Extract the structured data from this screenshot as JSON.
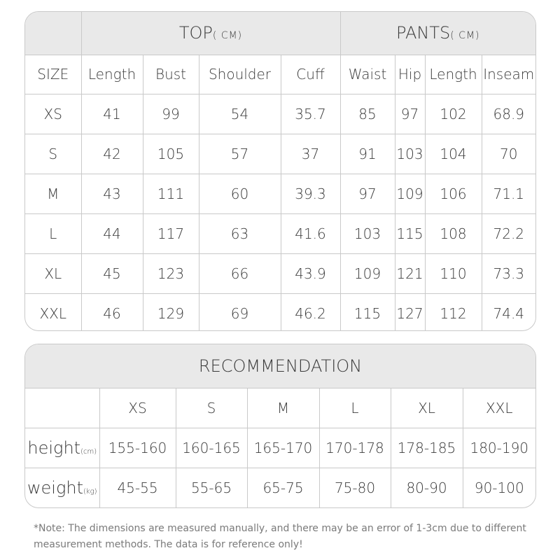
{
  "size_table": {
    "top_label": "TOP",
    "top_unit": "( CM)",
    "pants_label": "PANTS",
    "pants_unit": "( CM)",
    "columns": [
      "SIZE",
      "Length",
      "Bust",
      "Shoulder",
      "Cuff",
      "Waist",
      "Hip",
      "Length",
      "Inseam"
    ],
    "rows": [
      [
        "XS",
        "41",
        "99",
        "54",
        "35.7",
        "85",
        "97",
        "102",
        "68.9"
      ],
      [
        "S",
        "42",
        "105",
        "57",
        "37",
        "91",
        "103",
        "104",
        "70"
      ],
      [
        "M",
        "43",
        "111",
        "60",
        "39.3",
        "97",
        "109",
        "106",
        "71.1"
      ],
      [
        "L",
        "44",
        "117",
        "63",
        "41.6",
        "103",
        "115",
        "108",
        "72.2"
      ],
      [
        "XL",
        "45",
        "123",
        "66",
        "43.9",
        "109",
        "121",
        "110",
        "73.3"
      ],
      [
        "XXL",
        "46",
        "129",
        "69",
        "46.2",
        "115",
        "127",
        "112",
        "74.4"
      ]
    ]
  },
  "recommendation": {
    "title": "RECOMMENDATION",
    "sizes": [
      "XS",
      "S",
      "M",
      "L",
      "XL",
      "XXL"
    ],
    "rows": [
      {
        "label": "height",
        "unit": "(cm)",
        "values": [
          "155-160",
          "160-165",
          "165-170",
          "170-178",
          "178-185",
          "180-190"
        ]
      },
      {
        "label": "weight",
        "unit": "(kg)",
        "values": [
          "45-55",
          "55-65",
          "65-75",
          "75-80",
          "80-90",
          "90-100"
        ]
      }
    ]
  },
  "note": "*Note: The dimensions are measured manually, and there may be an error of 1-3cm due to different measurement methods. The data is for reference only!"
}
